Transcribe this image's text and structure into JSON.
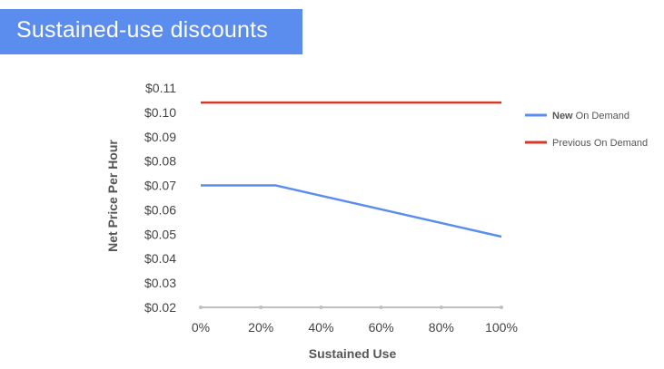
{
  "banner": {
    "title": "Sustained-use discounts"
  },
  "chart_data": {
    "type": "line",
    "xlabel": "Sustained Use",
    "ylabel": "Net Price Per Hour",
    "x_ticks": [
      "0%",
      "20%",
      "40%",
      "60%",
      "80%",
      "100%"
    ],
    "y_ticks": [
      "$0.02",
      "$0.03",
      "$0.04",
      "$0.05",
      "$0.06",
      "$0.07",
      "$0.08",
      "$0.09",
      "$0.10",
      "$0.11"
    ],
    "xlim": [
      0,
      100
    ],
    "ylim": [
      0.02,
      0.11
    ],
    "grid": false,
    "legend_position": "right",
    "series": [
      {
        "name_bold": "New",
        "name_rest": " On Demand",
        "color": "#5b8def",
        "x": [
          0,
          25,
          100
        ],
        "y": [
          0.07,
          0.07,
          0.049
        ]
      },
      {
        "name": "Previous On Demand",
        "color": "#d43a2a",
        "x": [
          0,
          100
        ],
        "y": [
          0.104,
          0.104
        ]
      }
    ]
  }
}
